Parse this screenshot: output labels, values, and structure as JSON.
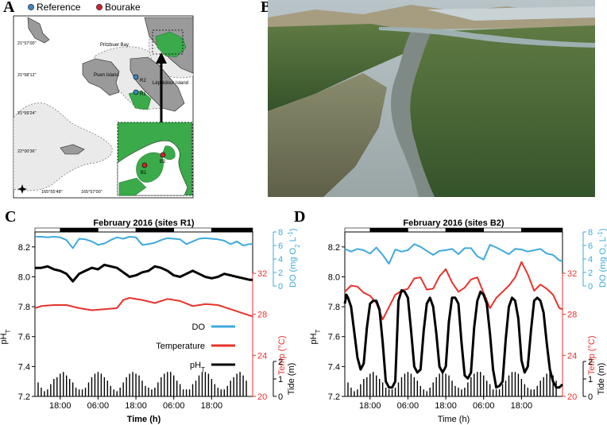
{
  "panels": {
    "a": {
      "letter": "A",
      "legend": [
        {
          "label": "Reference",
          "color": "#3d87c7"
        },
        {
          "label": "Bourake",
          "color": "#d2232a"
        }
      ],
      "place_labels": [
        "Pritzbuer Bay",
        "Puen Island",
        "Léprédour Island"
      ],
      "site_labels": [
        "R2",
        "R1",
        "B2",
        "B1"
      ],
      "lat_ticks": [
        "21°57'00\"",
        "21°58'12\"",
        "21°59'24\"",
        "22°00'36\""
      ],
      "lon_ticks": [
        "165°55'48\"",
        "165°57'00\""
      ],
      "colors": {
        "mangrove": "#3aaa4a",
        "land": "#9a9a9a",
        "reef": "#eaeaea"
      }
    },
    "b": {
      "letter": "B"
    },
    "c": {
      "letter": "C"
    },
    "d": {
      "letter": "D"
    }
  },
  "chart_data": [
    {
      "id": "C",
      "type": "line",
      "title": "February 2016 (sites R1)",
      "xlabel": "Time (h)",
      "x_ticks": [
        "18:00",
        "06:00",
        "18:00",
        "06:00",
        "18:00"
      ],
      "x_tick_hours": [
        6,
        18,
        30,
        42,
        54
      ],
      "x_range_hours": [
        -2,
        67
      ],
      "day_night_bar": [
        {
          "from": -2,
          "to": 6,
          "state": "day"
        },
        {
          "from": 6,
          "to": 18,
          "state": "night"
        },
        {
          "from": 18,
          "to": 30,
          "state": "day"
        },
        {
          "from": 30,
          "to": 42,
          "state": "night"
        },
        {
          "from": 42,
          "to": 54,
          "state": "day"
        },
        {
          "from": 54,
          "to": 67,
          "state": "night"
        }
      ],
      "axes": {
        "ph": {
          "label": "pH",
          "label_sub": "T",
          "ticks": [
            "7.2",
            "7.4",
            "7.6",
            "7.8",
            "8.0",
            "8.2"
          ],
          "range": [
            7.2,
            8.3
          ],
          "color": "#000000"
        },
        "temp": {
          "label": "Temp (°C)",
          "ticks": [
            "20",
            "24",
            "28",
            "32"
          ],
          "range": [
            20,
            36
          ],
          "color": "#e8322c"
        },
        "do": {
          "label": "DO (mg O",
          "label_sub": "2",
          "label_tail": " L",
          "label_sup": "-1",
          "label_close": ")",
          "ticks": [
            "0",
            "2",
            "4",
            "6",
            "8"
          ],
          "range": [
            0,
            8
          ],
          "color": "#3fa9dc"
        },
        "tide": {
          "label": "Tide (m)",
          "ticks": [
            "0",
            "1",
            "2"
          ],
          "range": [
            0,
            2
          ],
          "color": "#000000"
        }
      },
      "legend": [
        {
          "label": "DO",
          "color": "#3fa9dc"
        },
        {
          "label": "Temperature",
          "color": "#e8322c"
        },
        {
          "label": "pH",
          "label_sub": "T",
          "color": "#000000"
        }
      ],
      "series": [
        {
          "name": "DO",
          "axis": "do",
          "x_hours": [
            -2,
            0,
            2,
            4,
            6,
            8,
            10,
            12,
            14,
            16,
            18,
            20,
            22,
            24,
            26,
            28,
            30,
            32,
            34,
            36,
            38,
            40,
            42,
            44,
            46,
            48,
            50,
            52,
            54,
            56,
            58,
            60,
            62,
            64,
            66,
            67
          ],
          "values": [
            7.3,
            7.3,
            7.2,
            7.3,
            7.2,
            6.8,
            5.6,
            7.0,
            6.9,
            6.6,
            6.1,
            6.3,
            6.8,
            7.2,
            7.0,
            7.3,
            7.2,
            6.1,
            6.2,
            6.4,
            6.8,
            7.1,
            7.0,
            6.9,
            6.2,
            6.6,
            7.0,
            7.1,
            7.0,
            6.9,
            6.7,
            6.2,
            6.6,
            6.0,
            6.2,
            6.2
          ]
        },
        {
          "name": "Temperature",
          "axis": "temp",
          "x_hours": [
            -2,
            0,
            4,
            8,
            12,
            16,
            20,
            24,
            26,
            28,
            32,
            36,
            40,
            44,
            48,
            52,
            56,
            60,
            64,
            67
          ],
          "values": [
            28.6,
            28.8,
            28.9,
            28.9,
            28.6,
            28.4,
            28.5,
            28.6,
            29.4,
            29.6,
            29.4,
            29.1,
            29.5,
            29.3,
            28.8,
            29.0,
            28.9,
            28.5,
            28.1,
            27.8
          ]
        },
        {
          "name": "pHT",
          "axis": "ph",
          "x_hours": [
            -2,
            0,
            2,
            4,
            6,
            8,
            10,
            12,
            14,
            16,
            18,
            20,
            22,
            24,
            26,
            28,
            30,
            32,
            34,
            36,
            38,
            40,
            42,
            44,
            46,
            48,
            50,
            52,
            54,
            56,
            58,
            60,
            62,
            64,
            66,
            67
          ],
          "values": [
            8.06,
            8.06,
            8.07,
            8.05,
            8.04,
            8.02,
            7.97,
            8.02,
            8.04,
            8.06,
            8.05,
            8.08,
            8.07,
            8.06,
            8.03,
            8.0,
            8.01,
            8.03,
            8.04,
            8.07,
            8.06,
            8.04,
            8.01,
            8.0,
            8.02,
            8.04,
            8.02,
            8.0,
            7.99,
            8.0,
            8.02,
            8.01,
            8.0,
            7.99,
            7.98,
            7.98
          ]
        },
        {
          "name": "Tide",
          "axis": "tide",
          "kind": "bars",
          "x_start_hour": -1,
          "x_step_hour": 1,
          "values": [
            0.8,
            0.5,
            0.3,
            0.4,
            0.7,
            1.0,
            1.1,
            1.3,
            1.4,
            1.2,
            1.0,
            0.8,
            0.5,
            0.4,
            0.4,
            0.5,
            0.8,
            1.1,
            1.3,
            1.4,
            1.3,
            1.1,
            0.9,
            0.6,
            0.4,
            0.3,
            0.5,
            0.8,
            1.1,
            1.3,
            1.4,
            1.3,
            1.2,
            0.9,
            0.6,
            0.5,
            0.4,
            0.5,
            0.8,
            1.1,
            1.3,
            1.4,
            1.4,
            1.2,
            0.9,
            0.7,
            0.4,
            0.4,
            0.4,
            0.7,
            0.9,
            1.2,
            1.4,
            1.4,
            1.3,
            1.0,
            0.7,
            0.5,
            0.4,
            0.4,
            0.6,
            0.9,
            1.1,
            1.3,
            1.4,
            1.2,
            0.9
          ]
        }
      ]
    },
    {
      "id": "D",
      "type": "line",
      "title": "February 2016 (sites B2)",
      "xlabel": "Time (h)",
      "x_ticks": [
        "18:00",
        "06:00",
        "18:00",
        "06:00",
        "18:00"
      ],
      "x_tick_hours": [
        6,
        18,
        30,
        42,
        54
      ],
      "x_range_hours": [
        -2,
        67
      ],
      "day_night_bar": [
        {
          "from": -2,
          "to": 6,
          "state": "day"
        },
        {
          "from": 6,
          "to": 18,
          "state": "night"
        },
        {
          "from": 18,
          "to": 30,
          "state": "day"
        },
        {
          "from": 30,
          "to": 42,
          "state": "night"
        },
        {
          "from": 42,
          "to": 54,
          "state": "day"
        },
        {
          "from": 54,
          "to": 67,
          "state": "night"
        }
      ],
      "axes": {
        "ph": {
          "label": "pH",
          "label_sub": "T",
          "ticks": [
            "7.2",
            "7.4",
            "7.6",
            "7.8",
            "8.0",
            "8.2"
          ],
          "range": [
            7.2,
            8.3
          ],
          "color": "#000000"
        },
        "temp": {
          "label": "Temp (°C)",
          "ticks": [
            "20",
            "24",
            "28",
            "32"
          ],
          "range": [
            20,
            36
          ],
          "color": "#e8322c"
        },
        "do": {
          "label": "DO (mg O",
          "label_sub": "2",
          "label_tail": " L",
          "label_sup": "-1",
          "label_close": ")",
          "ticks": [
            "0",
            "2",
            "4",
            "6",
            "8"
          ],
          "range": [
            0,
            8
          ],
          "color": "#3fa9dc"
        },
        "tide": {
          "label": "Tide (m)",
          "ticks": [
            "0",
            "1",
            "2"
          ],
          "range": [
            0,
            2
          ],
          "color": "#000000"
        }
      },
      "series": [
        {
          "name": "DO",
          "axis": "do",
          "x_hours": [
            -2,
            0,
            2,
            4,
            6,
            8,
            10,
            12,
            14,
            16,
            18,
            20,
            22,
            24,
            26,
            28,
            30,
            32,
            34,
            36,
            38,
            40,
            42,
            44,
            46,
            48,
            50,
            52,
            54,
            56,
            58,
            60,
            62,
            64,
            66,
            67
          ],
          "values": [
            5.5,
            5.1,
            5.5,
            5.3,
            4.8,
            5.7,
            4.6,
            3.3,
            5.4,
            5.1,
            5.3,
            6.2,
            5.8,
            5.2,
            4.6,
            5.2,
            5.3,
            5.5,
            4.7,
            5.6,
            5.6,
            4.4,
            3.9,
            6.1,
            5.7,
            5.2,
            4.7,
            5.5,
            5.4,
            5.1,
            5.3,
            5.5,
            4.8,
            4.6,
            3.8,
            3.7
          ]
        },
        {
          "name": "Temperature",
          "axis": "temp",
          "x_hours": [
            -2,
            0,
            2,
            4,
            6,
            8,
            10,
            12,
            14,
            16,
            18,
            20,
            22,
            24,
            26,
            28,
            30,
            32,
            34,
            36,
            38,
            40,
            42,
            44,
            46,
            48,
            50,
            52,
            54,
            56,
            58,
            60,
            62,
            64,
            66,
            67
          ],
          "values": [
            30.2,
            30.8,
            30.7,
            30.1,
            29.8,
            29.1,
            27.5,
            28.7,
            29.9,
            30.3,
            30.5,
            31.5,
            31.6,
            30.4,
            30.5,
            31.7,
            32.4,
            31.1,
            30.2,
            30.6,
            31.4,
            31.6,
            30.1,
            28.6,
            29.6,
            30.2,
            30.8,
            31.6,
            33.1,
            31.9,
            30.3,
            30.9,
            30.5,
            29.9,
            28.6,
            28.5
          ]
        },
        {
          "name": "pHT",
          "axis": "ph",
          "x_hours": [
            -2,
            -1.5,
            -1,
            0,
            2,
            3,
            4,
            5,
            6,
            7,
            8,
            9,
            10,
            11,
            12,
            13,
            14,
            15,
            16,
            17,
            18,
            19,
            20,
            21,
            22,
            23,
            24,
            25,
            26,
            27,
            28,
            29,
            30,
            31,
            32,
            33,
            34,
            35,
            36,
            37,
            38,
            39,
            40,
            41,
            42,
            43,
            44,
            45,
            46,
            47,
            48,
            49,
            50,
            51,
            52,
            53,
            54,
            55,
            56,
            57,
            58,
            59,
            60,
            61,
            62,
            63,
            64,
            65,
            66,
            67
          ],
          "values": [
            7.82,
            7.88,
            7.86,
            7.8,
            7.46,
            7.38,
            7.42,
            7.66,
            7.82,
            7.84,
            7.84,
            7.78,
            7.56,
            7.3,
            7.26,
            7.26,
            7.3,
            7.84,
            7.91,
            7.9,
            7.86,
            7.64,
            7.4,
            7.36,
            7.38,
            7.64,
            7.82,
            7.86,
            7.8,
            7.62,
            7.4,
            7.36,
            7.4,
            7.7,
            7.86,
            7.86,
            7.82,
            7.56,
            7.34,
            7.32,
            7.36,
            7.66,
            7.84,
            7.9,
            7.88,
            7.82,
            7.62,
            7.38,
            7.26,
            7.27,
            7.3,
            7.58,
            7.8,
            7.86,
            7.84,
            7.72,
            7.44,
            7.36,
            7.4,
            7.64,
            7.84,
            7.86,
            7.84,
            7.76,
            7.56,
            7.38,
            7.3,
            7.26,
            7.26,
            7.28
          ]
        },
        {
          "name": "Tide",
          "axis": "tide",
          "kind": "bars",
          "x_start_hour": -1,
          "x_step_hour": 1,
          "values": [
            0.8,
            0.5,
            0.3,
            0.4,
            0.7,
            1.0,
            1.1,
            1.3,
            1.4,
            1.2,
            1.0,
            0.8,
            0.5,
            0.4,
            0.4,
            0.5,
            0.8,
            1.1,
            1.3,
            1.4,
            1.3,
            1.1,
            0.9,
            0.6,
            0.4,
            0.3,
            0.5,
            0.8,
            1.1,
            1.3,
            1.4,
            1.3,
            1.2,
            0.9,
            0.6,
            0.5,
            0.4,
            0.5,
            0.8,
            1.1,
            1.3,
            1.4,
            1.4,
            1.2,
            0.9,
            0.7,
            0.4,
            0.4,
            0.4,
            0.7,
            0.9,
            1.2,
            1.4,
            1.4,
            1.3,
            1.0,
            0.7,
            0.5,
            0.4,
            0.4,
            0.6,
            0.9,
            1.1,
            1.3,
            1.4,
            1.2,
            0.9
          ]
        }
      ]
    }
  ]
}
